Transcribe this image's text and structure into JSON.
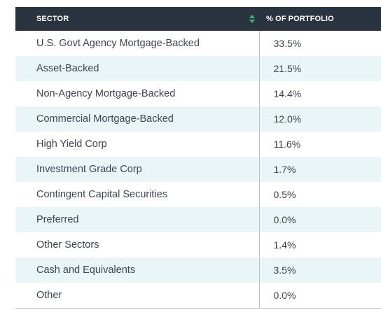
{
  "table": {
    "headers": {
      "sector": "SECTOR",
      "percent": "% OF PORTFOLIO"
    },
    "sort_icon": "sort-up-down-icon",
    "sort_icon_color": "#3fb37a",
    "rows": [
      {
        "sector": "U.S. Govt Agency Mortgage-Backed",
        "percent": "33.5%"
      },
      {
        "sector": "Asset-Backed",
        "percent": "21.5%"
      },
      {
        "sector": "Non-Agency Mortgage-Backed",
        "percent": "14.4%"
      },
      {
        "sector": "Commercial Mortgage-Backed",
        "percent": "12.0%"
      },
      {
        "sector": "High Yield Corp",
        "percent": "11.6%"
      },
      {
        "sector": "Investment Grade Corp",
        "percent": "1.7%"
      },
      {
        "sector": "Contingent Capital Securities",
        "percent": "0.5%"
      },
      {
        "sector": "Preferred",
        "percent": "0.0%"
      },
      {
        "sector": "Other Sectors",
        "percent": "1.4%"
      },
      {
        "sector": "Cash and Equivalents",
        "percent": "3.5%"
      },
      {
        "sector": "Other",
        "percent": "0.0%"
      }
    ]
  }
}
